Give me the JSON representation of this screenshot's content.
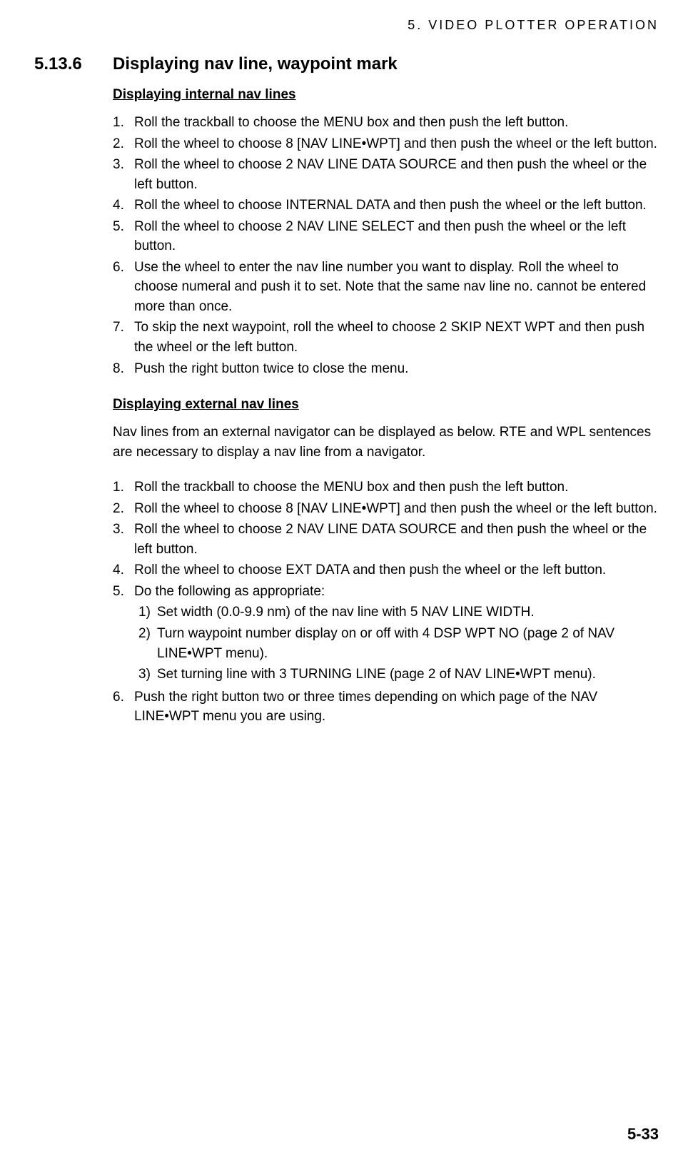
{
  "header": {
    "running_title": "5. VIDEO PLOTTER OPERATION"
  },
  "section": {
    "number": "5.13.6",
    "title": "Displaying nav line, waypoint mark"
  },
  "block1": {
    "heading": "Displaying internal nav lines",
    "steps": [
      {
        "n": "1.",
        "t": "Roll the trackball to choose the MENU box and then push the left button."
      },
      {
        "n": "2.",
        "t": "Roll the wheel to choose 8 [NAV LINE•WPT] and then push the wheel or the left button."
      },
      {
        "n": "3.",
        "t": "Roll the wheel to choose 2 NAV LINE DATA SOURCE and then push the wheel or the left button."
      },
      {
        "n": "4.",
        "t": "Roll the wheel to choose INTERNAL DATA and then push the wheel or the left button."
      },
      {
        "n": "5.",
        "t": "Roll the wheel to choose 2 NAV LINE SELECT and then push the wheel or the left button."
      },
      {
        "n": "6.",
        "t": "Use the wheel to enter the nav line number you want to display. Roll the wheel to choose numeral and push it to set. Note that the same nav line no. cannot be entered more than once."
      },
      {
        "n": "7.",
        "t": "To skip the next waypoint, roll the wheel to choose 2 SKIP NEXT WPT and then push the wheel or the left button."
      },
      {
        "n": "8.",
        "t": "Push the right button twice to close the menu."
      }
    ]
  },
  "block2": {
    "heading": "Displaying external nav lines",
    "intro": "Nav lines from an external navigator can be displayed as below. RTE and WPL sentences are necessary to display a nav line from a navigator.",
    "steps": [
      {
        "n": "1.",
        "t": "Roll the trackball to choose the MENU box and then push the left button."
      },
      {
        "n": "2.",
        "t": "Roll the wheel to choose 8 [NAV LINE•WPT] and then push the wheel or the left button."
      },
      {
        "n": "3.",
        "t": "Roll the wheel to choose 2 NAV LINE DATA SOURCE and then push the wheel or the left button."
      },
      {
        "n": "4.",
        "t": "Roll the wheel to choose EXT DATA and then push the wheel or the left button."
      },
      {
        "n": "5.",
        "t": "Do the following as appropriate:"
      },
      {
        "n": "6.",
        "t": "Push the right button two or three times depending on which page of the NAV LINE•WPT menu you are using."
      }
    ],
    "substeps": [
      {
        "n": "1)",
        "t": "Set width (0.0-9.9 nm) of the nav line with 5 NAV LINE WIDTH."
      },
      {
        "n": "2)",
        "t": "Turn waypoint number display on or off with 4 DSP WPT NO (page 2 of NAV LINE•WPT menu)."
      },
      {
        "n": "3)",
        "t": "Set turning line with 3 TURNING LINE (page 2 of NAV LINE•WPT menu)."
      }
    ]
  },
  "footer": {
    "page_number": "5-33"
  }
}
